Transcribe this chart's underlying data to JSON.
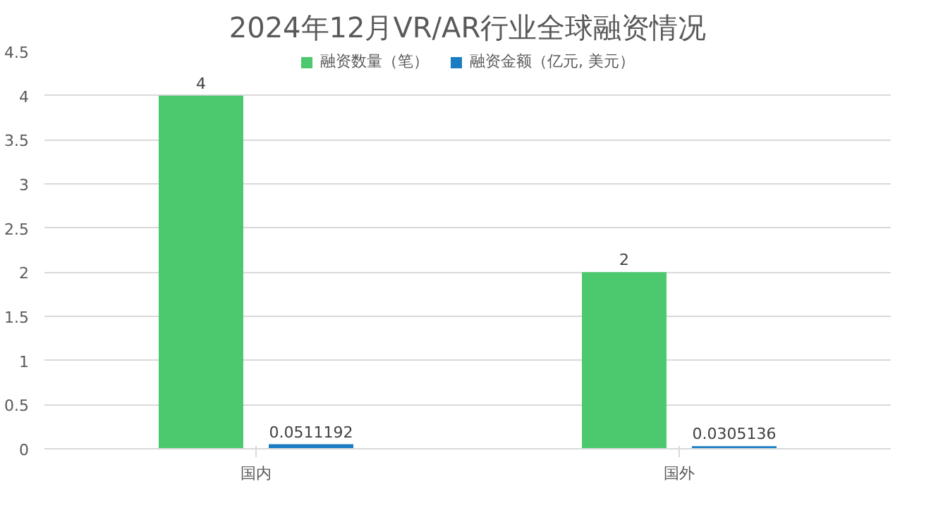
{
  "chart_data": {
    "type": "bar",
    "title": "2024年12月VR/AR行业全球融资情况",
    "categories": [
      "国内",
      "国外"
    ],
    "series": [
      {
        "name": "融资数量（笔）",
        "color": "#4cc96e",
        "values": [
          4,
          2
        ]
      },
      {
        "name": "融资金额（亿元, 美元）",
        "color": "#1a7dc4",
        "values": [
          0.0511192,
          0.0305136
        ]
      }
    ],
    "ylim": [
      0,
      4.5
    ],
    "yticks": [
      0,
      0.5,
      1,
      1.5,
      2,
      2.5,
      3,
      3.5,
      4,
      4.5
    ],
    "grid": "y",
    "legend": "top",
    "data_labels": true
  }
}
